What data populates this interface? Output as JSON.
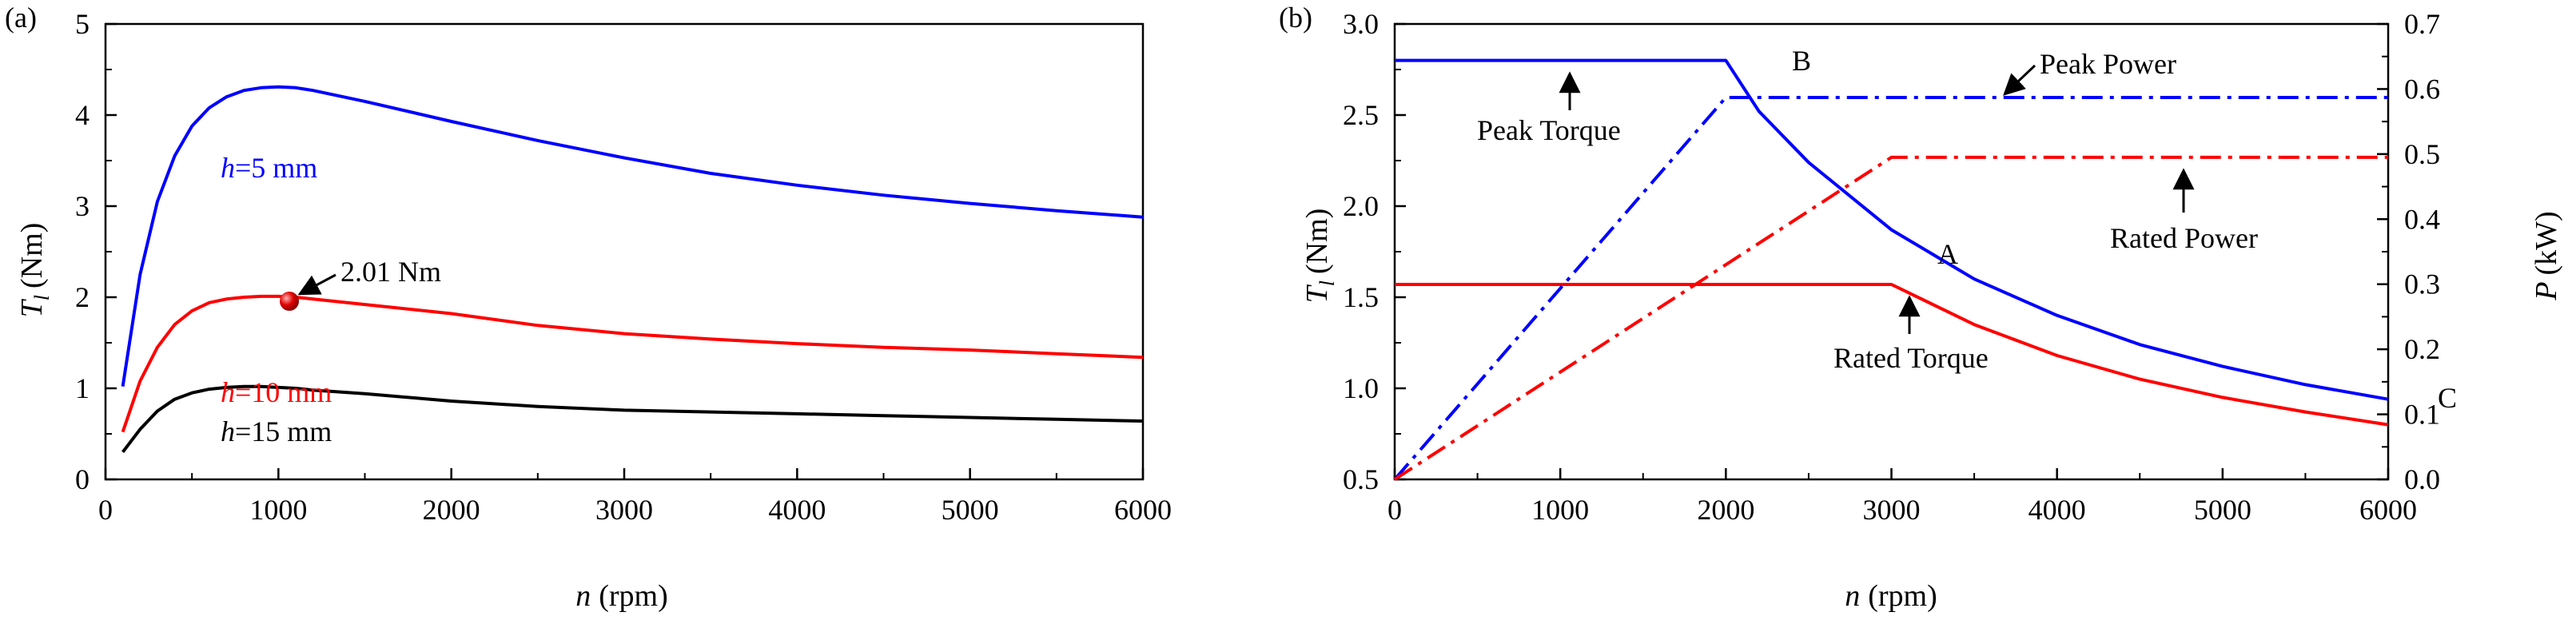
{
  "chart_data": [
    {
      "panel_label": "(a)",
      "type": "line",
      "xlabel": {
        "var": "n",
        "unit": "(rpm)"
      },
      "ylabel": {
        "var": "T",
        "sub": "l",
        "unit": "(Nm)"
      },
      "xlim": [
        0,
        6000
      ],
      "ylim": [
        0,
        5
      ],
      "xticks": [
        0,
        1000,
        2000,
        3000,
        4000,
        5000,
        6000
      ],
      "yticks": [
        0,
        1,
        2,
        3,
        4,
        5
      ],
      "series": [
        {
          "name": "h=5 mm",
          "label_var": "h",
          "label_rest": "=5 mm",
          "color": "#0000ff",
          "x": [
            100,
            200,
            300,
            400,
            500,
            600,
            700,
            800,
            900,
            1000,
            1100,
            1200,
            1500,
            2000,
            2500,
            3000,
            3500,
            4000,
            4500,
            5000,
            5500,
            6000
          ],
          "y": [
            1.02,
            2.25,
            3.05,
            3.55,
            3.88,
            4.08,
            4.2,
            4.27,
            4.3,
            4.31,
            4.3,
            4.27,
            4.15,
            3.93,
            3.72,
            3.53,
            3.36,
            3.23,
            3.12,
            3.03,
            2.95,
            2.88
          ]
        },
        {
          "name": "h=10 mm",
          "label_var": "h",
          "label_rest": "=10 mm",
          "color": "#ff0000",
          "x": [
            100,
            200,
            300,
            400,
            500,
            600,
            700,
            800,
            900,
            1000,
            1100,
            1200,
            1500,
            2000,
            2500,
            3000,
            3500,
            4000,
            4500,
            5000,
            5500,
            6000
          ],
          "y": [
            0.52,
            1.08,
            1.45,
            1.7,
            1.85,
            1.94,
            1.98,
            2.0,
            2.01,
            2.01,
            2.0,
            1.98,
            1.92,
            1.82,
            1.69,
            1.6,
            1.54,
            1.49,
            1.45,
            1.42,
            1.38,
            1.34
          ]
        },
        {
          "name": "h=15 mm",
          "label_var": "h",
          "label_rest": "=15 mm",
          "color": "#000000",
          "x": [
            100,
            200,
            300,
            400,
            500,
            600,
            700,
            800,
            900,
            1000,
            1100,
            1200,
            1500,
            2000,
            2500,
            3000,
            3500,
            4000,
            4500,
            5000,
            5500,
            6000
          ],
          "y": [
            0.3,
            0.55,
            0.75,
            0.88,
            0.95,
            0.99,
            1.01,
            1.02,
            1.02,
            1.01,
            1.0,
            0.98,
            0.94,
            0.86,
            0.8,
            0.76,
            0.74,
            0.72,
            0.7,
            0.68,
            0.66,
            0.64
          ]
        }
      ],
      "annotations": [
        {
          "text": "2.01 Nm",
          "x": 1000,
          "y": 2.01
        }
      ]
    },
    {
      "panel_label": "(b)",
      "type": "line",
      "xlabel": {
        "var": "n",
        "unit": "(rpm)"
      },
      "ylabel_left": {
        "var": "T",
        "sub": "l",
        "unit": "(Nm)"
      },
      "ylabel_right": {
        "var": "P",
        "unit": "(kW)"
      },
      "xlim": [
        0,
        6000
      ],
      "ylim_left": [
        0.5,
        3.0
      ],
      "ylim_right": [
        0.0,
        0.7
      ],
      "xticks": [
        0,
        1000,
        2000,
        3000,
        4000,
        5000,
        6000
      ],
      "yticks_left": [
        "0.5",
        "1.0",
        "1.5",
        "2.0",
        "2.5",
        "3.0"
      ],
      "yticks_right": [
        "0.0",
        "0.1",
        "0.2",
        "0.3",
        "0.4",
        "0.5",
        "0.6",
        "0.7"
      ],
      "series": [
        {
          "name": "Peak Torque",
          "axis": "left",
          "style": "solid",
          "color": "#0000ff",
          "x": [
            0,
            2000,
            2200,
            2500,
            3000,
            3500,
            4000,
            4500,
            5000,
            5500,
            6000
          ],
          "y": [
            2.8,
            2.8,
            2.52,
            2.24,
            1.87,
            1.6,
            1.4,
            1.24,
            1.12,
            1.02,
            0.94
          ]
        },
        {
          "name": "Rated Torque",
          "axis": "left",
          "style": "solid",
          "color": "#ff0000",
          "x": [
            0,
            3000,
            3500,
            4000,
            4500,
            5000,
            5500,
            6000
          ],
          "y": [
            1.57,
            1.57,
            1.35,
            1.18,
            1.05,
            0.95,
            0.87,
            0.8
          ]
        },
        {
          "name": "Peak Power",
          "axis": "right",
          "style": "dash-dot",
          "color": "#0000ff",
          "x": [
            0,
            2000,
            6000
          ],
          "y": [
            0.0,
            0.587,
            0.587
          ]
        },
        {
          "name": "Rated Power",
          "axis": "right",
          "style": "dash-dot",
          "color": "#ff0000",
          "x": [
            0,
            3000,
            6000
          ],
          "y": [
            0.0,
            0.495,
            0.495
          ]
        }
      ],
      "annotations": [
        {
          "text": "Peak Torque",
          "arrow_to": [
            800,
            2.8
          ]
        },
        {
          "text": "Peak Power",
          "arrow_to": [
            3250,
            0.587
          ]
        },
        {
          "text": "Rated Power",
          "arrow_to": [
            4500,
            0.495
          ]
        },
        {
          "text": "Rated Torque",
          "arrow_to": [
            2000,
            1.57
          ]
        }
      ],
      "point_labels": [
        {
          "text": "B",
          "x": 2000,
          "y": 2.8
        },
        {
          "text": "A",
          "x": 3000,
          "y": 1.57
        },
        {
          "text": "C",
          "x": 6000,
          "y": 0.94
        }
      ]
    }
  ]
}
